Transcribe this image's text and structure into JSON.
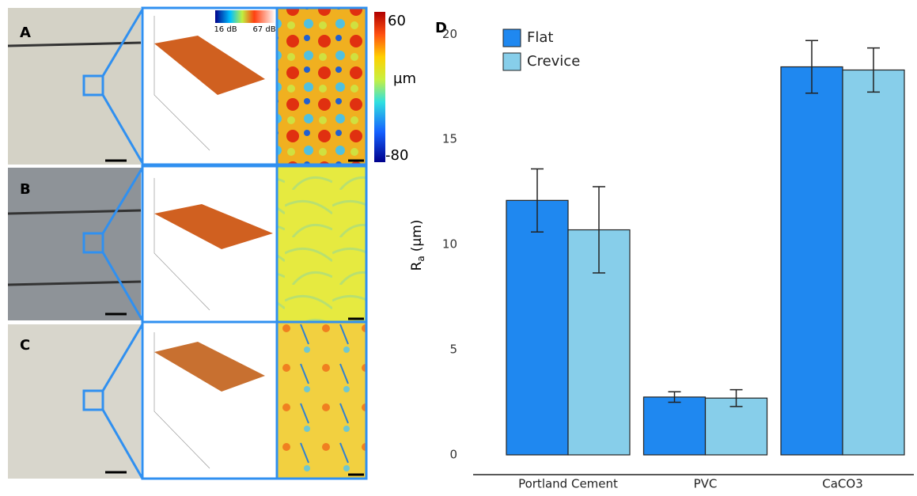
{
  "panels": {
    "labels": [
      "A",
      "B",
      "C"
    ]
  },
  "colorbar": {
    "top": "60",
    "unit": "µm",
    "bottom": "-80"
  },
  "intensity_legend": {
    "low": "16 dB",
    "high": "67 dB"
  },
  "chart_data": {
    "type": "bar",
    "panel_label": "D",
    "ylabel": {
      "main": "R",
      "sub": "a",
      "unit": "(µm)"
    },
    "categories": [
      "Portland Cement",
      "PVC",
      "CaCO3"
    ],
    "series": [
      {
        "name": "Flat",
        "color": "#1f88f0",
        "values": [
          12.1,
          2.75,
          18.45
        ],
        "errors": [
          1.5,
          0.25,
          1.25
        ]
      },
      {
        "name": "Crevice",
        "color": "#87ceea",
        "values": [
          10.7,
          2.7,
          18.3
        ],
        "errors": [
          2.05,
          0.4,
          1.05
        ]
      }
    ],
    "ylim": [
      -0.94,
      20.5
    ],
    "yticks": [
      0,
      5,
      10,
      15,
      20
    ],
    "grid": false,
    "legend": "top-left"
  }
}
